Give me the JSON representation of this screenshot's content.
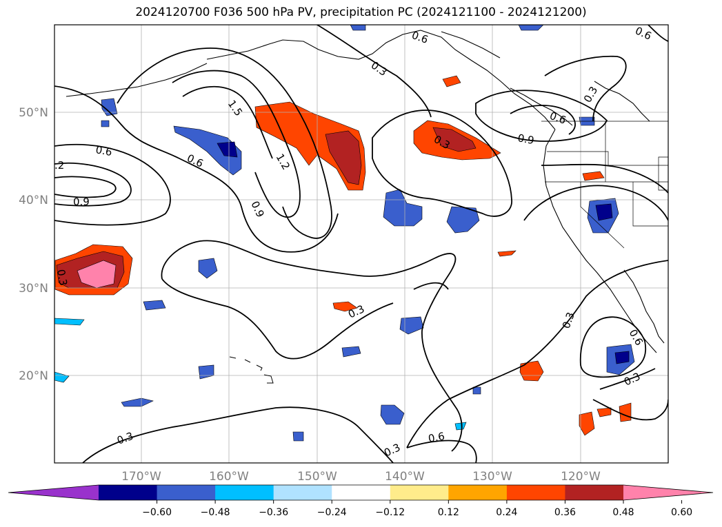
{
  "title": "2024120700 F036 500 hPa PV, precipitation PC (2024121100 - 2024121200)",
  "lon_ticks": [
    "170°W",
    "160°W",
    "150°W",
    "140°W",
    "130°W",
    "120°W"
  ],
  "lat_ticks": [
    "50°N",
    "40°N",
    "30°N",
    "20°N"
  ],
  "colorbar": {
    "levels": [
      "−0.60",
      "−0.48",
      "−0.36",
      "−0.24",
      "−0.12",
      "0.12",
      "0.24",
      "0.36",
      "0.48",
      "0.60"
    ],
    "colors": [
      "#9932cc",
      "#00008b",
      "#3a5fcd",
      "#00bfff",
      "#b0e2ff",
      "#ffffff",
      "#ffec8b",
      "#ffa500",
      "#ff4500",
      "#b22222",
      "#ff82ab"
    ],
    "extend": "both"
  },
  "contour_labels": [
    "0.3",
    "0.6",
    "0.6",
    "0.3",
    "1.5",
    "0.6",
    "0.6",
    ".2",
    "1.2",
    "0.9",
    "0.3",
    "0.9",
    "0.6",
    "0.9",
    "0.3",
    "0.3",
    "0.3",
    "0.6",
    "0.3",
    "0.3",
    "0.6",
    "0.3"
  ]
}
